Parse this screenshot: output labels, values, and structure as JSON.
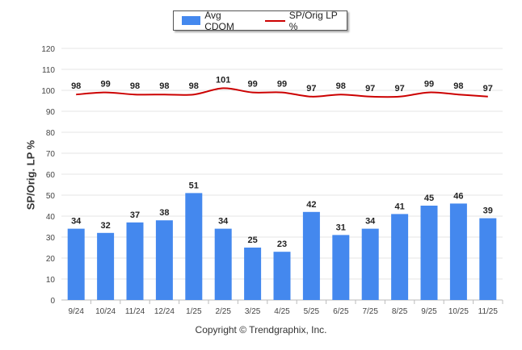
{
  "chart_data": {
    "type": "bar",
    "title": "",
    "xlabel": "",
    "ylabel": "SP/Orig. LP %",
    "ylim": [
      0,
      120
    ],
    "yticks": [
      0,
      10,
      20,
      30,
      40,
      50,
      60,
      70,
      80,
      90,
      100,
      110,
      120
    ],
    "categories": [
      "9/24",
      "10/24",
      "11/24",
      "12/24",
      "1/25",
      "2/25",
      "3/25",
      "4/25",
      "5/25",
      "6/25",
      "7/25",
      "8/25",
      "9/25",
      "10/25",
      "11/25"
    ],
    "series": [
      {
        "name": "Avg CDOM",
        "type": "bar",
        "color": "#4488ee",
        "values": [
          34,
          32,
          37,
          38,
          51,
          34,
          25,
          23,
          42,
          31,
          34,
          41,
          45,
          46,
          39
        ]
      },
      {
        "name": "SP/Orig LP %",
        "type": "line",
        "color": "#cc0000",
        "values": [
          98,
          99,
          98,
          98,
          98,
          101,
          99,
          99,
          97,
          98,
          97,
          97,
          99,
          98,
          97
        ]
      }
    ],
    "grid": true,
    "legend_position": "top-center"
  },
  "footer": {
    "copyright": "Copyright © Trendgraphix, Inc."
  }
}
